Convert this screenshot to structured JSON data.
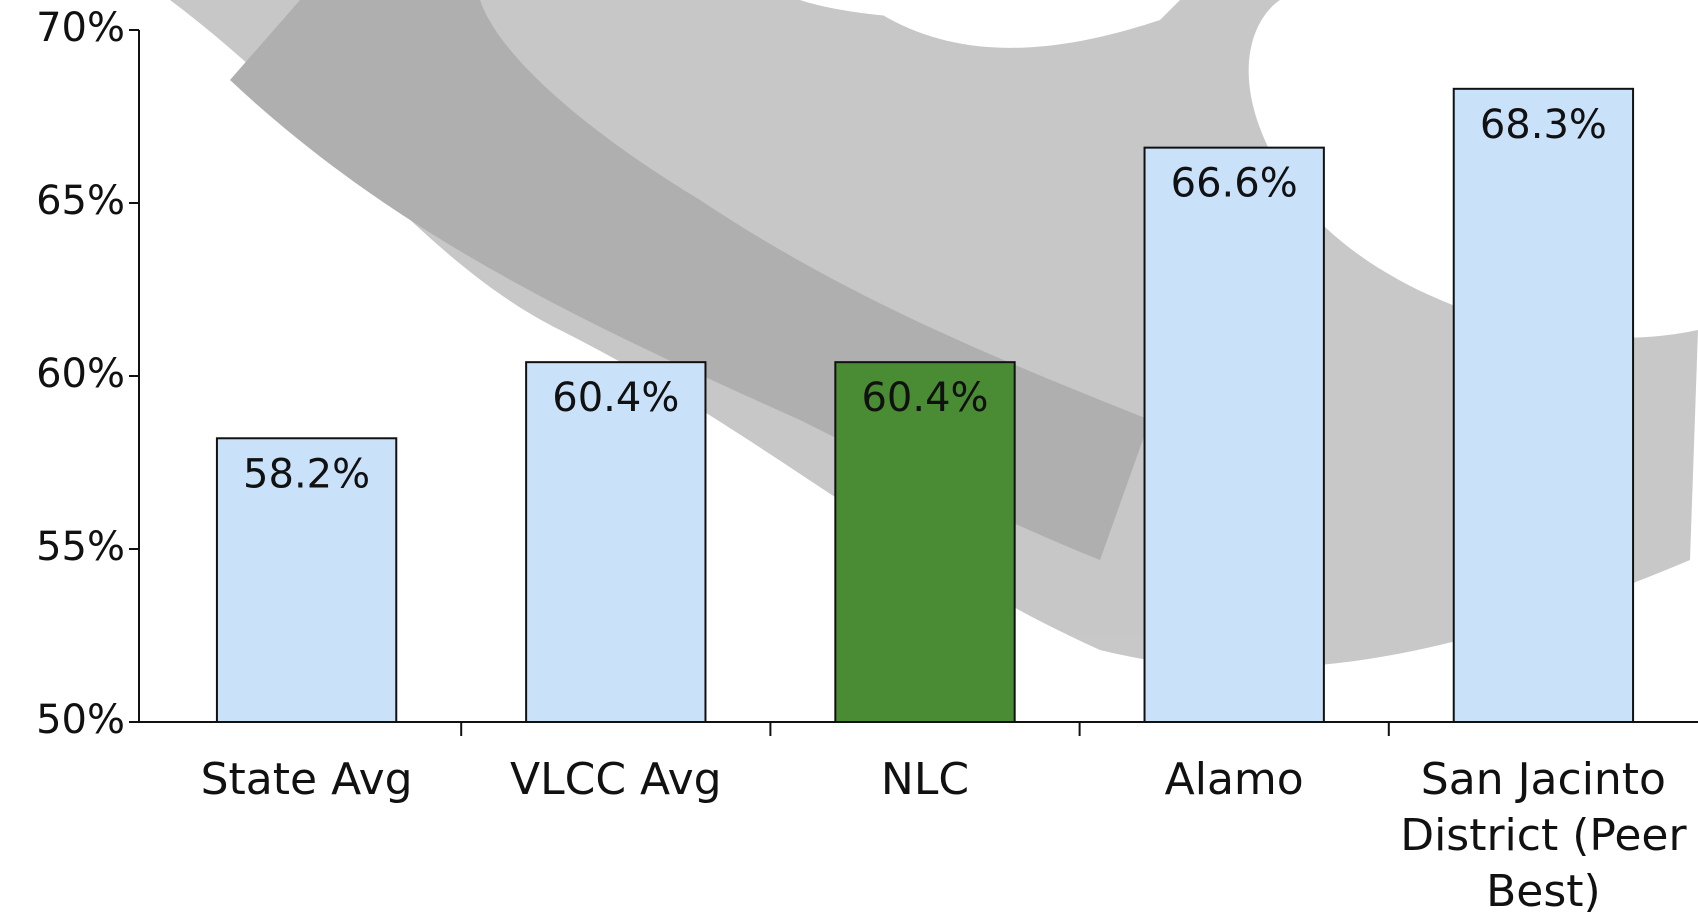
{
  "chart_data": {
    "type": "bar",
    "categories": [
      "State Avg",
      "VLCC Avg",
      "NLC",
      "Alamo",
      "San Jacinto District (Peer Best)"
    ],
    "values": [
      58.2,
      60.4,
      60.4,
      66.6,
      68.3
    ],
    "value_labels": [
      "58.2%",
      "60.4%",
      "60.4%",
      "66.6%",
      "68.3%"
    ],
    "colors": [
      "#c9e2fa",
      "#c9e2fa",
      "#4a8c34",
      "#c9e2fa",
      "#c9e2fa"
    ],
    "ylim": [
      50,
      70
    ],
    "yticks": [
      {
        "value": 50,
        "label": "50%"
      },
      {
        "value": 55,
        "label": "55%"
      },
      {
        "value": 60,
        "label": "60%"
      },
      {
        "value": 65,
        "label": "65%"
      },
      {
        "value": 70,
        "label": "70%"
      }
    ]
  }
}
